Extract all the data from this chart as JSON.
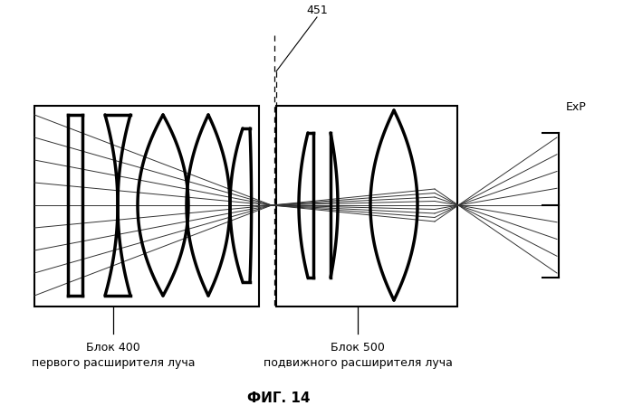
{
  "title": "ФИГ. 14",
  "label_451": "451",
  "label_exP": "ExP",
  "label_block400_line1": "Блок 400",
  "label_block400_line2": "первого расширителя луча",
  "label_block500_line1": "Блок 500",
  "label_block500_line2": "подвижного расширителя луча",
  "bg_color": "#ffffff",
  "line_color": "#000000",
  "fig_w": 6.99,
  "fig_h": 4.6,
  "dpi": 100
}
